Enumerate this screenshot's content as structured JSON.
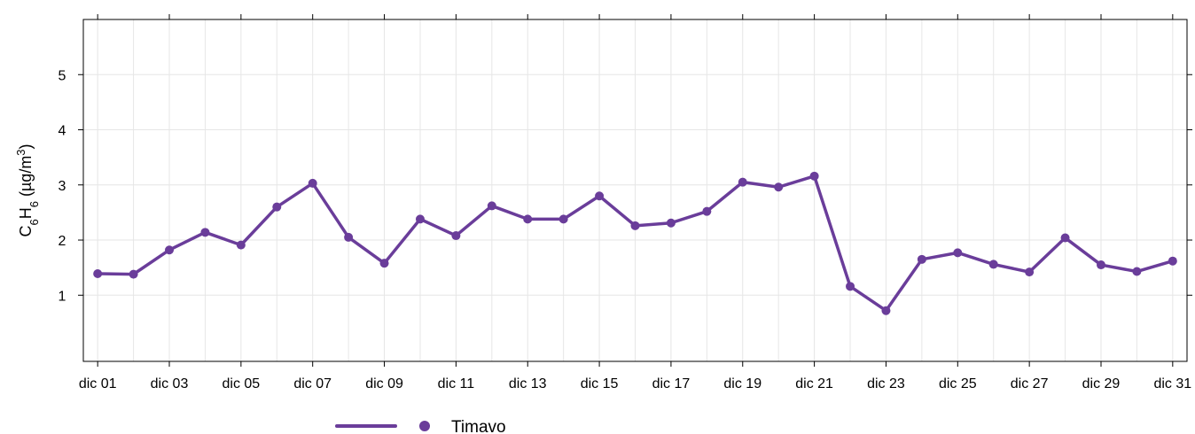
{
  "chart_data": {
    "type": "line",
    "ylabel": {
      "base": "C",
      "sub1": "6",
      "mid": "H",
      "sub2": "6",
      "unit_open": " (µg/m",
      "sup": "3",
      "unit_close": ")"
    },
    "xlabel": "",
    "ylim": [
      -0.2,
      6.0
    ],
    "y_ticks": [
      1,
      2,
      3,
      4,
      5
    ],
    "x_range": [
      0.6,
      31.4
    ],
    "x_tick_days": [
      1,
      3,
      5,
      7,
      9,
      11,
      13,
      15,
      17,
      19,
      21,
      23,
      25,
      27,
      29,
      31
    ],
    "x_tick_labels": [
      "dic 01",
      "dic 03",
      "dic 05",
      "dic 07",
      "dic 09",
      "dic 11",
      "dic 13",
      "dic 15",
      "dic 17",
      "dic 19",
      "dic 21",
      "dic 23",
      "dic 25",
      "dic 27",
      "dic 29",
      "dic 31"
    ],
    "grid": true,
    "legend_position": "bottom",
    "colors": {
      "series": "#6A3D9A",
      "grid": "#E6E6E6",
      "axis": "#000000"
    },
    "series": [
      {
        "name": "Timavo",
        "x_days": [
          1,
          2,
          3,
          4,
          5,
          6,
          7,
          8,
          9,
          10,
          11,
          12,
          13,
          14,
          15,
          16,
          17,
          18,
          19,
          20,
          21,
          22,
          23,
          24,
          25,
          26,
          27,
          28,
          29,
          30,
          31
        ],
        "values": [
          1.39,
          1.38,
          1.82,
          2.14,
          1.91,
          2.6,
          3.03,
          2.05,
          1.58,
          2.38,
          2.08,
          2.62,
          2.38,
          2.38,
          2.8,
          2.26,
          2.31,
          2.52,
          3.05,
          2.96,
          3.16,
          1.16,
          0.72,
          1.65,
          1.77,
          1.56,
          1.42,
          2.04,
          1.55,
          1.43,
          1.62
        ]
      }
    ]
  }
}
